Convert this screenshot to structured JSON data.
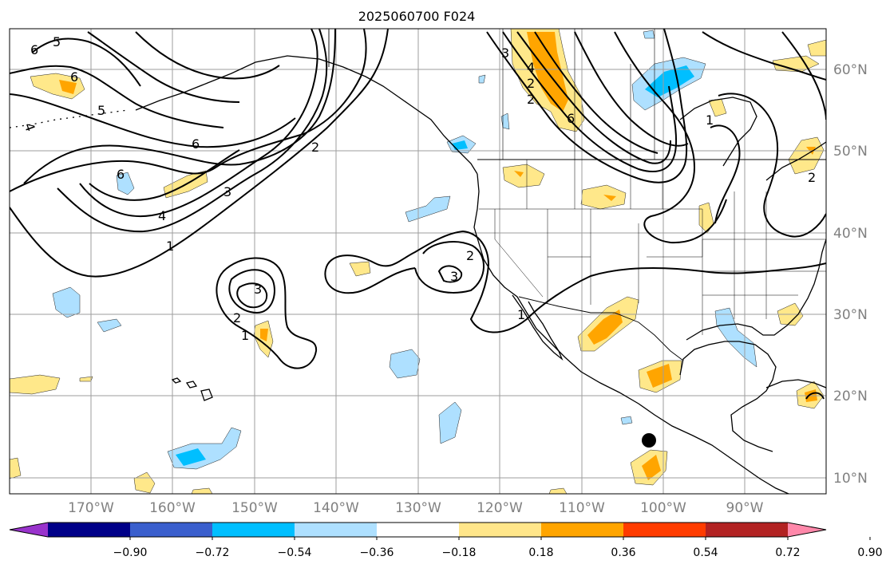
{
  "title": "2025060700 F024",
  "longitude_labels": [
    "170°W",
    "160°W",
    "150°W",
    "140°W",
    "130°W",
    "120°W",
    "110°W",
    "100°W",
    "90°W"
  ],
  "latitude_labels": [
    "60°N",
    "50°N",
    "40°N",
    "30°N",
    "20°N",
    "10°N"
  ],
  "colorbar": {
    "tick_labels": [
      "−0.90",
      "−0.72",
      "−0.54",
      "−0.36",
      "−0.18",
      "0.18",
      "0.36",
      "0.54",
      "0.72",
      "0.90"
    ],
    "colors": [
      "#9933cc",
      "#000088",
      "#3a5fcd",
      "#00bfff",
      "#aee0ff",
      "#ffffff",
      "#ffe68a",
      "#ffa500",
      "#ff3c00",
      "#b22222",
      "#ff88aa"
    ]
  },
  "contour_labels": [
    "6",
    "5",
    "4",
    "6",
    "5",
    "6",
    "6",
    "2",
    "3",
    "4",
    "1",
    "2",
    "3",
    "1",
    "2",
    "3",
    "2",
    "1",
    "2",
    "4",
    "6",
    "3",
    "2",
    "1"
  ],
  "colors": {
    "positive_light": "#ffe88a",
    "positive_mid": "#ffa500",
    "negative_light": "#aee0ff",
    "negative_mid": "#00bfff",
    "gridline": "#9e9e9e",
    "marker": "#000000"
  }
}
